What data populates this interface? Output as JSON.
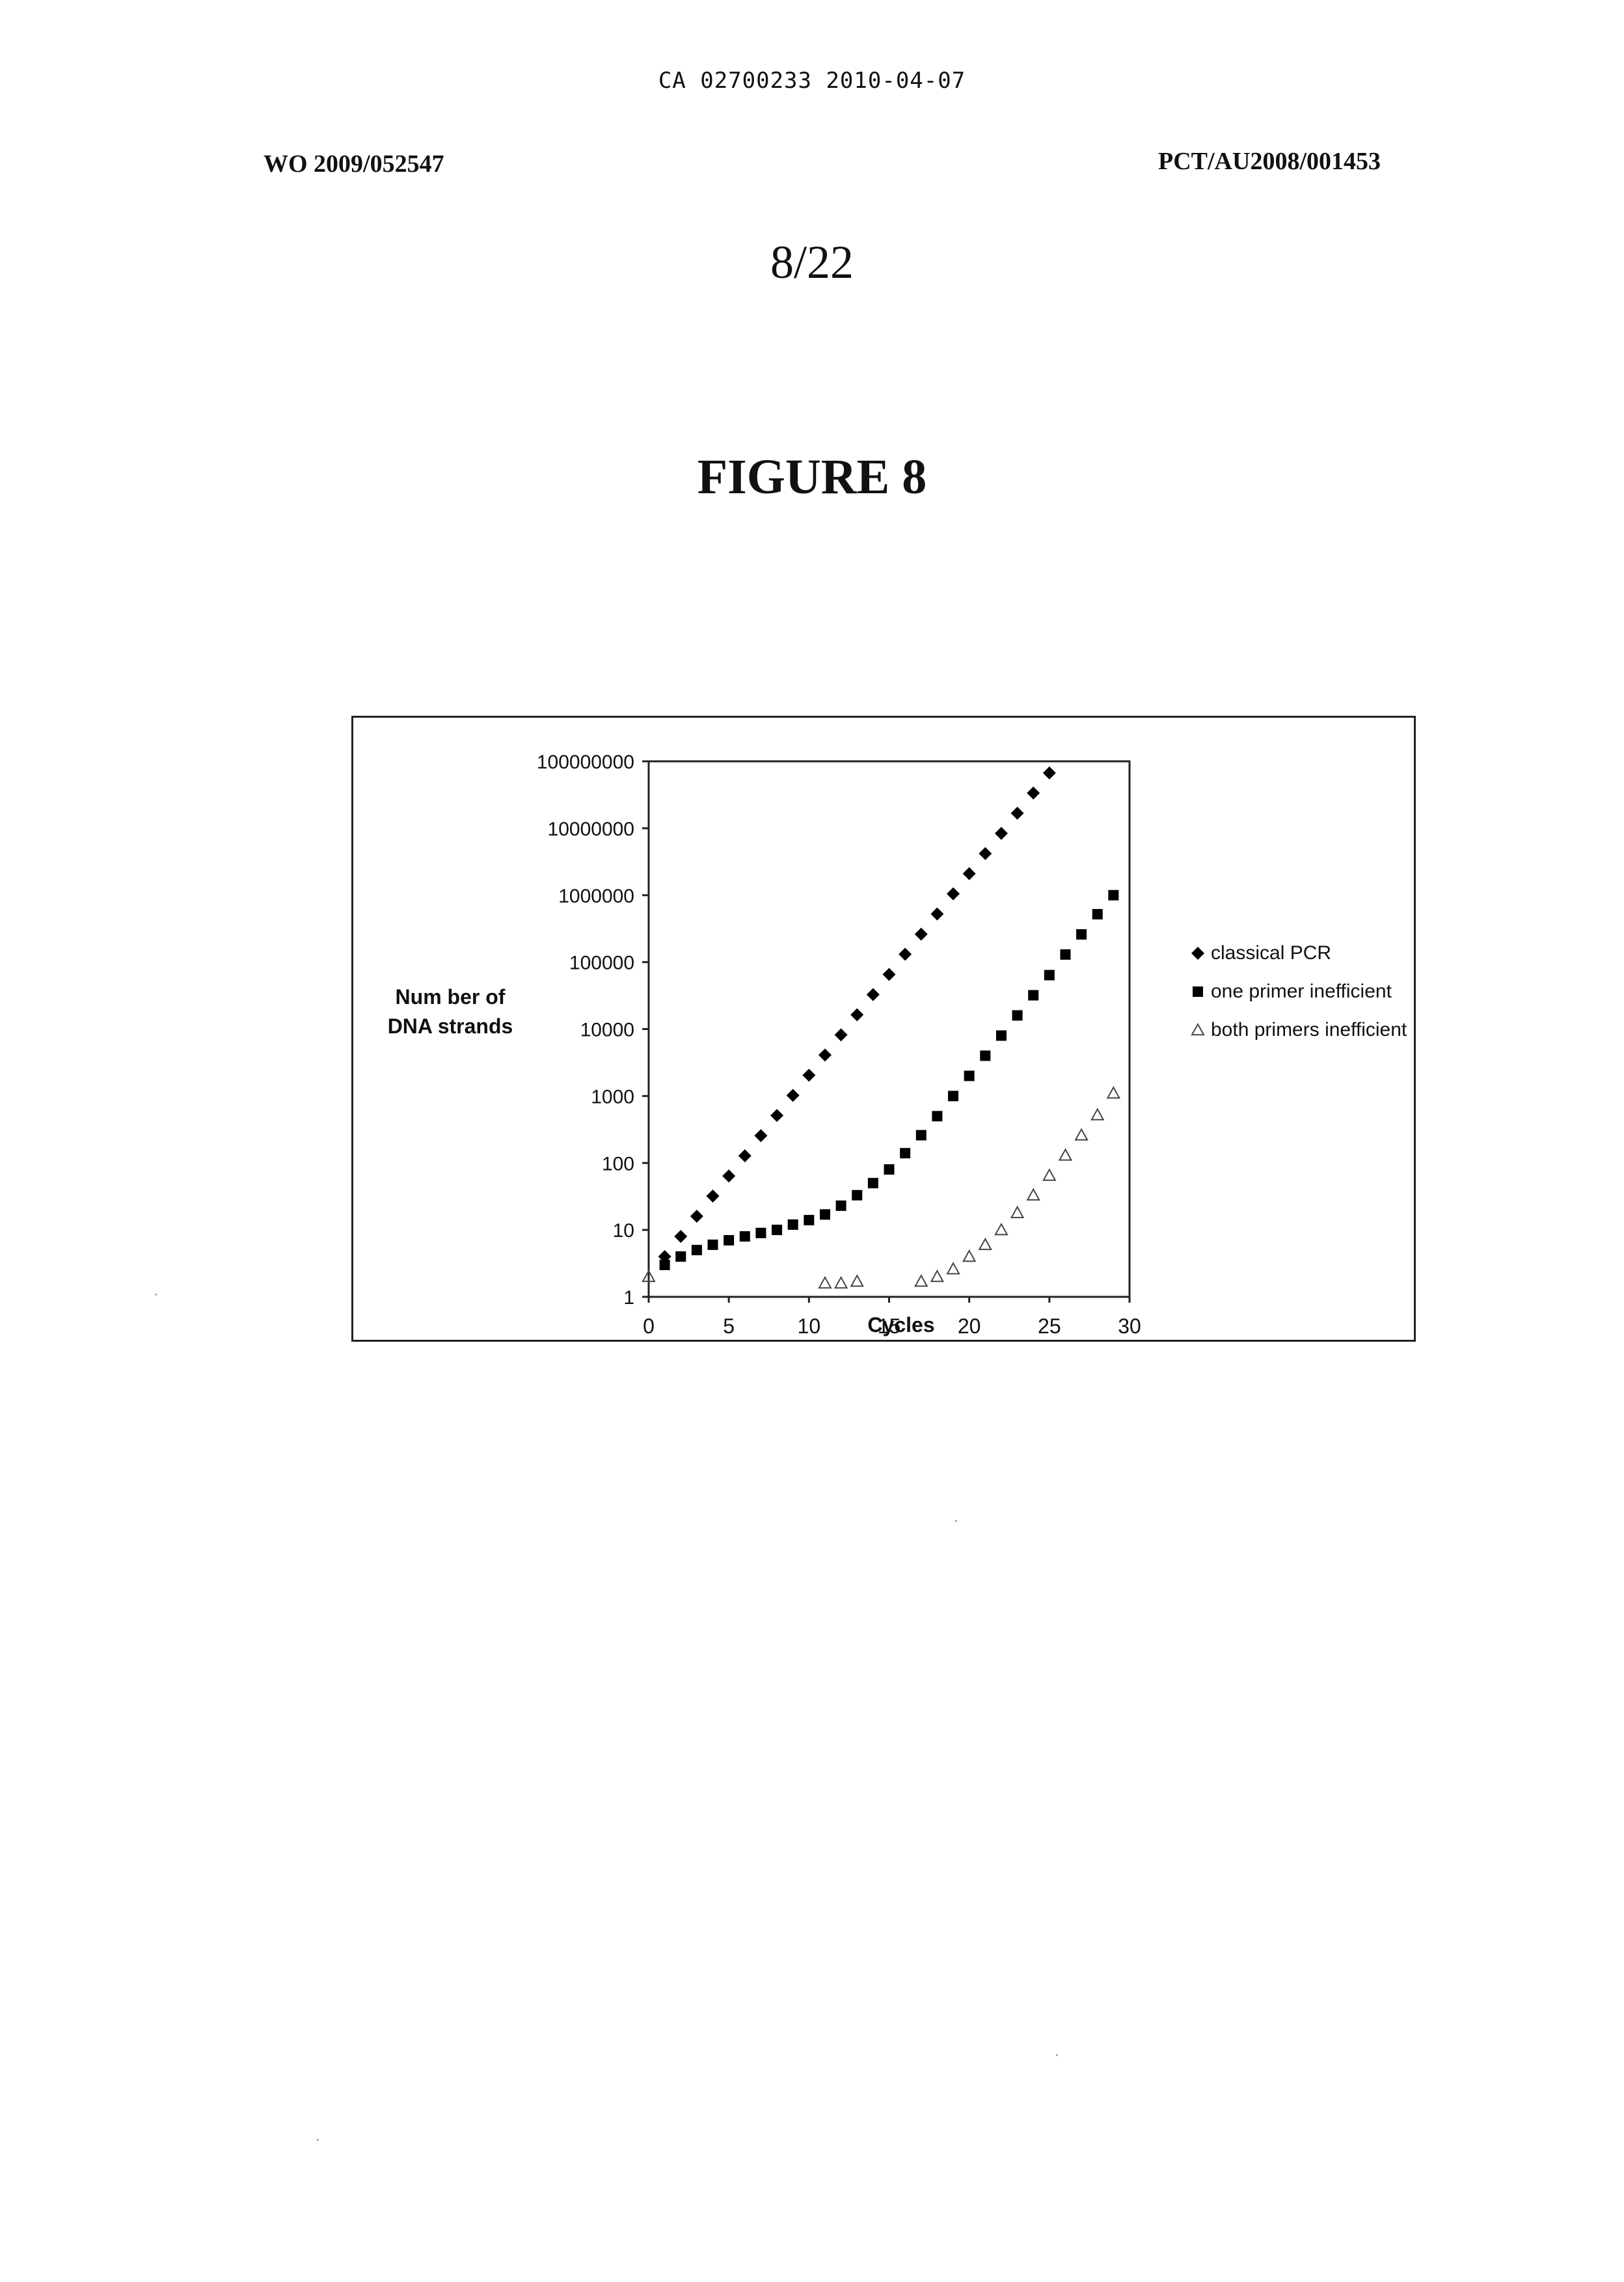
{
  "header": {
    "ca_number": "CA 02700233 2010-04-07",
    "wo_number": "WO 2009/052547",
    "pct_number": "PCT/AU2008/001453"
  },
  "sheet": {
    "number": "8/22"
  },
  "figure": {
    "title": "FIGURE 8"
  },
  "chart_data": {
    "type": "scatter",
    "title": "",
    "xlabel": "Cycles",
    "ylabel": "Number of DNA strands",
    "ylabel_lines": [
      "Num ber of",
      "DNA strands"
    ],
    "xlim": [
      0,
      30
    ],
    "ylim": [
      1,
      100000000
    ],
    "yscale": "log",
    "x_ticks": [
      0,
      5,
      10,
      15,
      20,
      25,
      30
    ],
    "x_tick_labels": [
      "0",
      "5",
      "10",
      "15",
      "20",
      "25",
      "30"
    ],
    "y_ticks": [
      1,
      10,
      100,
      1000,
      10000,
      100000,
      1000000,
      10000000,
      100000000
    ],
    "y_tick_labels": [
      "1",
      "10",
      "100",
      "1000",
      "10000",
      "100000",
      "1000000",
      "10000000",
      "100000000"
    ],
    "grid": false,
    "legend_position": "right",
    "series": [
      {
        "name": "classical PCR",
        "marker": "diamond",
        "color": "#000000",
        "points": [
          [
            1,
            4
          ],
          [
            2,
            8
          ],
          [
            3,
            16
          ],
          [
            4,
            32
          ],
          [
            5,
            64
          ],
          [
            6,
            128
          ],
          [
            7,
            256
          ],
          [
            8,
            512
          ],
          [
            9,
            1024
          ],
          [
            10,
            2048
          ],
          [
            11,
            4096
          ],
          [
            12,
            8192
          ],
          [
            13,
            16384
          ],
          [
            14,
            32768
          ],
          [
            15,
            65536
          ],
          [
            16,
            131072
          ],
          [
            17,
            262144
          ],
          [
            18,
            524288
          ],
          [
            19,
            1048576
          ],
          [
            20,
            2097152
          ],
          [
            21,
            4194304
          ],
          [
            22,
            8388608
          ],
          [
            23,
            16777216
          ],
          [
            24,
            33554432
          ],
          [
            25,
            67108864
          ]
        ]
      },
      {
        "name": "one primer inefficient",
        "marker": "square",
        "color": "#000000",
        "points": [
          [
            1,
            3
          ],
          [
            2,
            4
          ],
          [
            3,
            5
          ],
          [
            4,
            6
          ],
          [
            5,
            7
          ],
          [
            6,
            8
          ],
          [
            7,
            9
          ],
          [
            8,
            10
          ],
          [
            9,
            12
          ],
          [
            10,
            14
          ],
          [
            11,
            17
          ],
          [
            12,
            23
          ],
          [
            13,
            33
          ],
          [
            14,
            50
          ],
          [
            15,
            80
          ],
          [
            16,
            140
          ],
          [
            17,
            260
          ],
          [
            18,
            500
          ],
          [
            19,
            1000
          ],
          [
            20,
            2000
          ],
          [
            21,
            4000
          ],
          [
            22,
            8000
          ],
          [
            23,
            16000
          ],
          [
            24,
            32000
          ],
          [
            25,
            64000
          ],
          [
            26,
            130000
          ],
          [
            27,
            260000
          ],
          [
            28,
            520000
          ],
          [
            29,
            1000000
          ]
        ]
      },
      {
        "name": "both primers inefficient",
        "marker": "triangle-open",
        "color": "#000000",
        "points": [
          [
            0,
            2
          ],
          [
            11,
            1.6
          ],
          [
            12,
            1.6
          ],
          [
            13,
            1.7
          ],
          [
            17,
            1.7
          ],
          [
            18,
            2
          ],
          [
            19,
            2.6
          ],
          [
            20,
            4
          ],
          [
            21,
            6
          ],
          [
            22,
            10
          ],
          [
            23,
            18
          ],
          [
            24,
            33
          ],
          [
            25,
            65
          ],
          [
            26,
            130
          ],
          [
            27,
            260
          ],
          [
            28,
            520
          ],
          [
            29,
            1100
          ]
        ]
      }
    ]
  }
}
